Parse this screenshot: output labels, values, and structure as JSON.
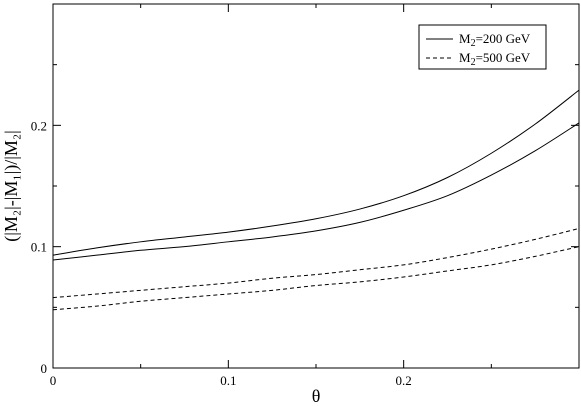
{
  "chart_data": {
    "type": "line",
    "xlabel": "θ",
    "ylabel": "(|M₂|-|M₁|)/|M₂|",
    "xlim": [
      0,
      0.3
    ],
    "ylim": [
      0,
      0.3
    ],
    "x_ticks": [
      "0",
      "0.1",
      "0.2"
    ],
    "y_ticks": [
      "0",
      "0.1",
      "0.2"
    ],
    "legend_position": "top-right",
    "grid": false,
    "series": [
      {
        "name": "M2=200 GeV",
        "style": "solid",
        "points": [
          [
            0,
            0.093
          ],
          [
            0.025,
            0.099
          ],
          [
            0.05,
            0.104
          ],
          [
            0.075,
            0.108
          ],
          [
            0.1,
            0.112
          ],
          [
            0.125,
            0.117
          ],
          [
            0.15,
            0.123
          ],
          [
            0.175,
            0.131
          ],
          [
            0.2,
            0.142
          ],
          [
            0.225,
            0.157
          ],
          [
            0.25,
            0.177
          ],
          [
            0.275,
            0.201
          ],
          [
            0.3,
            0.229
          ]
        ]
      },
      {
        "name": "M2=200 GeV",
        "style": "solid",
        "points": [
          [
            0,
            0.089
          ],
          [
            0.025,
            0.093
          ],
          [
            0.05,
            0.097
          ],
          [
            0.075,
            0.1
          ],
          [
            0.1,
            0.104
          ],
          [
            0.125,
            0.108
          ],
          [
            0.15,
            0.113
          ],
          [
            0.175,
            0.12
          ],
          [
            0.2,
            0.13
          ],
          [
            0.225,
            0.142
          ],
          [
            0.25,
            0.159
          ],
          [
            0.275,
            0.179
          ],
          [
            0.3,
            0.202
          ]
        ]
      },
      {
        "name": "M2=500 GeV",
        "style": "dashed",
        "points": [
          [
            0,
            0.058
          ],
          [
            0.025,
            0.061
          ],
          [
            0.05,
            0.064
          ],
          [
            0.075,
            0.067
          ],
          [
            0.1,
            0.07
          ],
          [
            0.125,
            0.074
          ],
          [
            0.15,
            0.077
          ],
          [
            0.175,
            0.081
          ],
          [
            0.2,
            0.085
          ],
          [
            0.225,
            0.091
          ],
          [
            0.25,
            0.098
          ],
          [
            0.275,
            0.106
          ],
          [
            0.3,
            0.115
          ]
        ]
      },
      {
        "name": "M2=500 GeV",
        "style": "dashed",
        "points": [
          [
            0,
            0.048
          ],
          [
            0.025,
            0.051
          ],
          [
            0.05,
            0.055
          ],
          [
            0.075,
            0.058
          ],
          [
            0.1,
            0.061
          ],
          [
            0.125,
            0.064
          ],
          [
            0.15,
            0.068
          ],
          [
            0.175,
            0.071
          ],
          [
            0.2,
            0.075
          ],
          [
            0.225,
            0.08
          ],
          [
            0.25,
            0.085
          ],
          [
            0.275,
            0.092
          ],
          [
            0.3,
            0.1
          ]
        ]
      }
    ],
    "legend": [
      {
        "style": "solid",
        "prefix": "M",
        "sub": "2",
        "suffix": "=200 GeV"
      },
      {
        "style": "dashed",
        "prefix": "M",
        "sub": "2",
        "suffix": "=500 GeV"
      }
    ]
  }
}
